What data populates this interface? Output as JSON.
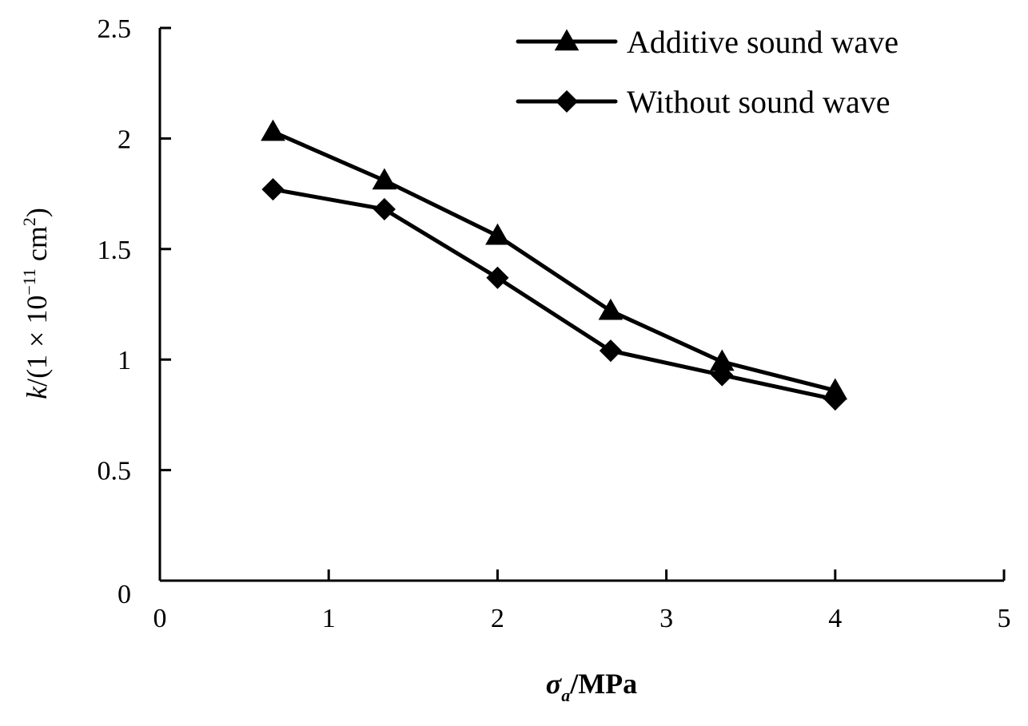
{
  "chart_data": {
    "type": "line",
    "xlabel": {
      "symbol": "σ",
      "subscript": "a",
      "unit": "/MPa"
    },
    "ylabel": {
      "symbol": "k",
      "rest": "/(1 × 10",
      "exp": "−11",
      "unit": " cm",
      "unit_exp": "2",
      "close": ")"
    },
    "xlim": [
      0,
      5
    ],
    "ylim": [
      0,
      2.5
    ],
    "x_ticks": [
      0,
      1,
      2,
      3,
      4,
      5
    ],
    "y_ticks": [
      0,
      0.5,
      1,
      1.5,
      2,
      2.5
    ],
    "x_tick_labels": [
      "0",
      "1",
      "2",
      "3",
      "4",
      "5"
    ],
    "y_tick_labels": [
      "0",
      "0.5",
      "1",
      "1.5",
      "2",
      "2.5"
    ],
    "grid": false,
    "legend_position": "top-right",
    "series": [
      {
        "name": "Additive sound wave",
        "marker": "triangle",
        "color": "#000000",
        "x": [
          0.67,
          1.33,
          2.0,
          2.67,
          3.33,
          4.0
        ],
        "y": [
          2.03,
          1.81,
          1.56,
          1.22,
          0.99,
          0.86
        ]
      },
      {
        "name": "Without sound wave",
        "marker": "diamond",
        "color": "#000000",
        "x": [
          0.67,
          1.33,
          2.0,
          2.67,
          3.33,
          4.0
        ],
        "y": [
          1.77,
          1.68,
          1.37,
          1.04,
          0.93,
          0.82
        ]
      }
    ]
  }
}
